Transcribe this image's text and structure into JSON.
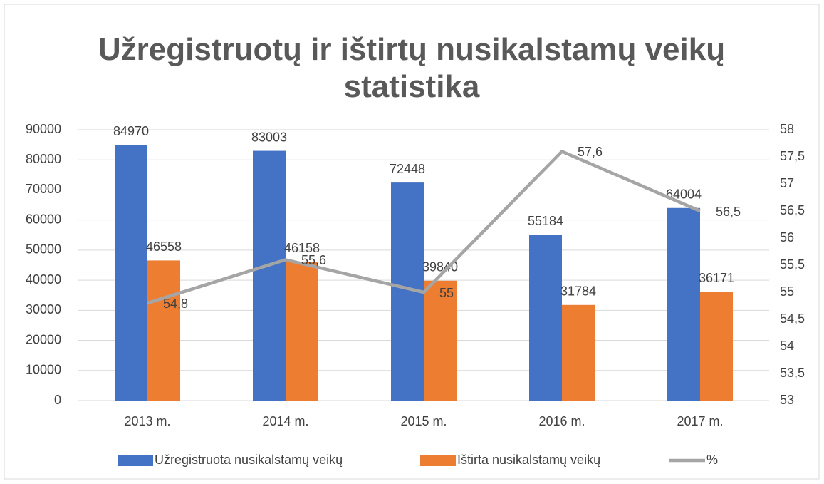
{
  "chart_data": {
    "type": "bar-line",
    "title": "Užregistruotų ir ištirtų nusikalstamų veikų statistika",
    "categories": [
      "2013 m.",
      "2014 m.",
      "2015 m.",
      "2016 m.",
      "2017 m."
    ],
    "series": [
      {
        "name": "Užregistruota nusikalstamų veikų",
        "type": "bar",
        "color": "#4472c4",
        "values": [
          84970,
          83003,
          72448,
          55184,
          64004
        ]
      },
      {
        "name": "Ištirta nusikalstamų veikų",
        "type": "bar",
        "color": "#ed7d31",
        "values": [
          46558,
          46158,
          39840,
          31784,
          36171
        ]
      },
      {
        "name": "%",
        "type": "line",
        "axis": "y2",
        "color": "#a5a5a5",
        "values": [
          54.8,
          55.6,
          55,
          57.6,
          56.5
        ],
        "value_labels": [
          "54,8",
          "55,6",
          "55",
          "57,6",
          "56,5"
        ]
      }
    ],
    "ylim": [
      0,
      90000
    ],
    "yticks": [
      0,
      10000,
      20000,
      30000,
      40000,
      50000,
      60000,
      70000,
      80000,
      90000
    ],
    "y2lim": [
      53,
      58
    ],
    "y2ticks": [
      53,
      {
        "value": 53.5,
        "label": "53,5"
      },
      54,
      {
        "value": 54.5,
        "label": "54,5"
      },
      55,
      {
        "value": 55.5,
        "label": "55,5"
      },
      56,
      {
        "value": 56.5,
        "label": "56,5"
      },
      57,
      {
        "value": 57.5,
        "label": "57,5"
      },
      58
    ],
    "grid": true,
    "legend": "bottom"
  }
}
